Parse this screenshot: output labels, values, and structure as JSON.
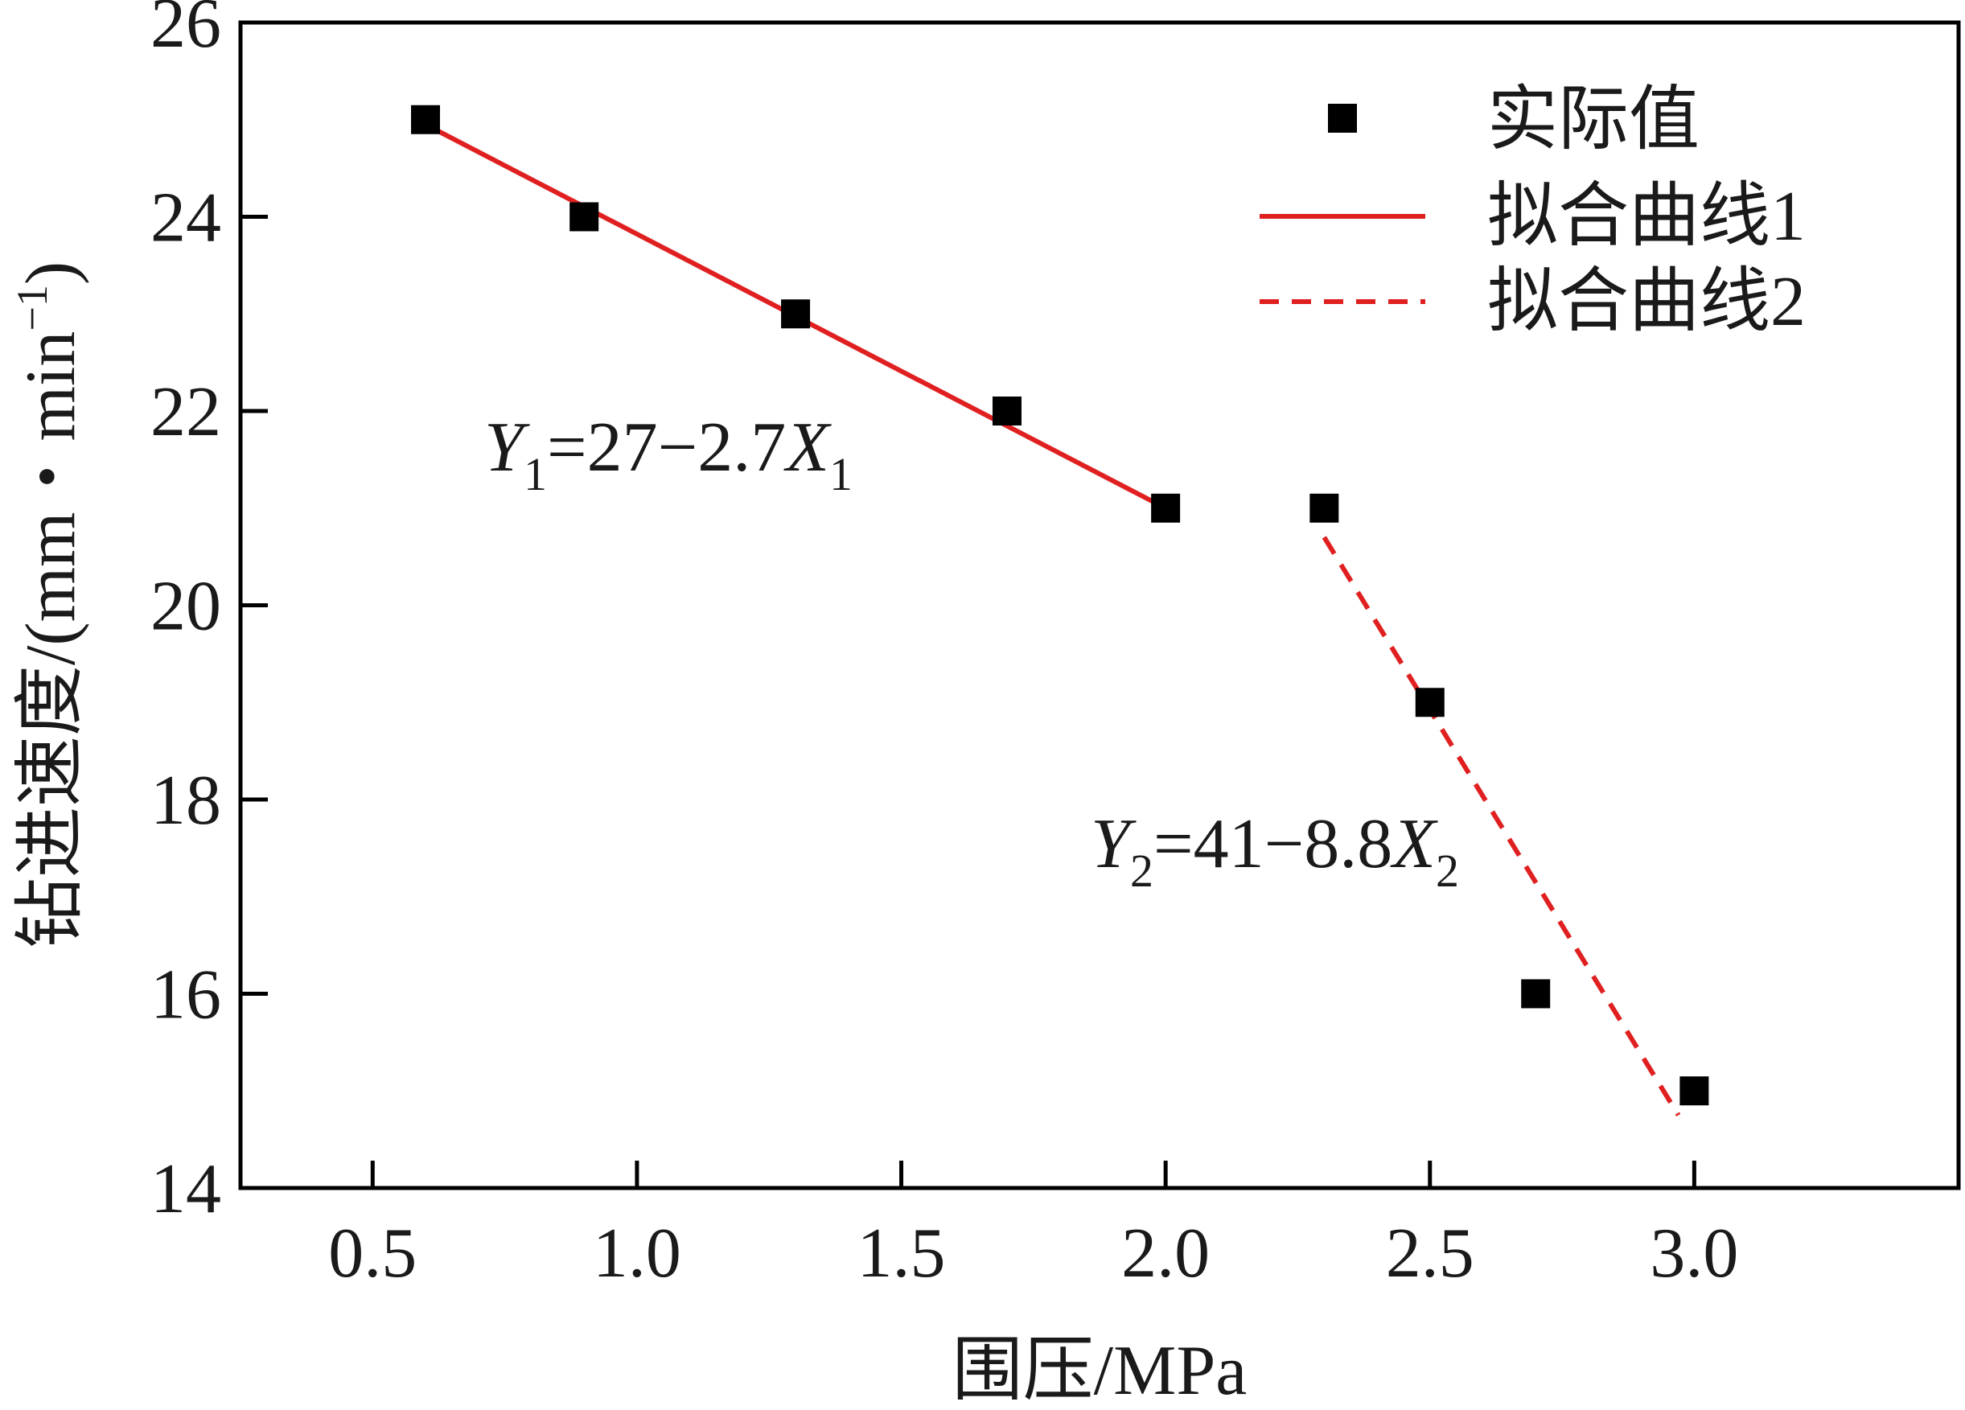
{
  "chart_data": {
    "type": "scatter",
    "xlabel": "围压/MPa",
    "ylabel_main": "钻进速度/(mm・min",
    "ylabel_sup": "−1",
    "ylabel_close": ")",
    "xlim": [
      0.25,
      3.5
    ],
    "ylim": [
      14,
      26
    ],
    "xticks": [
      0.5,
      1.0,
      1.5,
      2.0,
      2.5,
      3.0
    ],
    "xtick_labels": [
      "0.5",
      "1.0",
      "1.5",
      "2.0",
      "2.5",
      "3.0"
    ],
    "yticks": [
      14,
      16,
      18,
      20,
      22,
      24,
      26
    ],
    "ytick_labels": [
      "14",
      "16",
      "18",
      "20",
      "22",
      "24",
      "26"
    ],
    "grid": false,
    "legend_position": "top-right",
    "series": [
      {
        "name": "实际值",
        "kind": "scatter",
        "marker": "square",
        "color": "#000000",
        "x": [
          0.6,
          0.9,
          1.3,
          1.7,
          2.0,
          2.3,
          2.5,
          2.7,
          3.0
        ],
        "y": [
          25,
          24,
          23,
          22,
          21,
          21,
          19,
          16,
          15
        ]
      },
      {
        "name": "拟合曲线1",
        "kind": "line",
        "dash": "solid",
        "color": "#e02020",
        "x": [
          0.6,
          2.0
        ],
        "y": [
          24.95,
          21.0
        ]
      },
      {
        "name": "拟合曲线2",
        "kind": "line",
        "dash": "dashed",
        "color": "#e02020",
        "x": [
          2.3,
          2.97
        ],
        "y": [
          20.7,
          14.75
        ]
      }
    ],
    "annotations": [
      {
        "Y": "Y",
        "sub1": "1",
        "eq": "=27−2.7",
        "X": "X",
        "sub2": "1"
      },
      {
        "Y": "Y",
        "sub1": "2",
        "eq": "=41−8.8",
        "X": "X",
        "sub2": "2"
      }
    ]
  }
}
